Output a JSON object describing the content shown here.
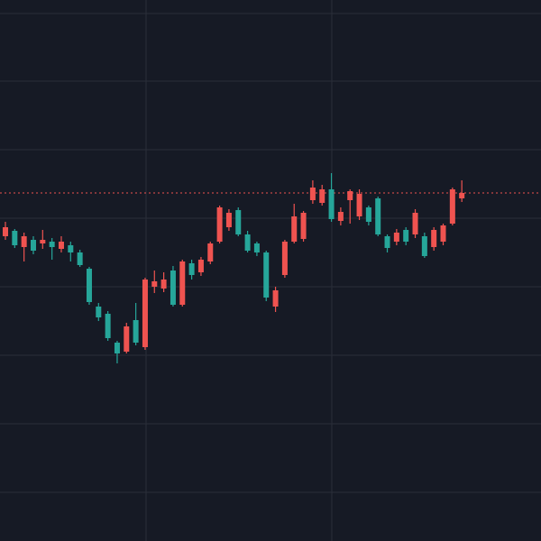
{
  "chart_data": {
    "type": "candlestick",
    "open": [
      338,
      344,
      326,
      334,
      330,
      332,
      324,
      328,
      320,
      302,
      260,
      252,
      220,
      210,
      245,
      215,
      282,
      280,
      300,
      262,
      308,
      298,
      310,
      332,
      348,
      367,
      340,
      330,
      320,
      260,
      295,
      332,
      335,
      378,
      375,
      390,
      355,
      378,
      360,
      370,
      380,
      338,
      332,
      345,
      340,
      338,
      326,
      332,
      352,
      380
    ],
    "high": [
      354,
      346,
      342,
      338,
      345,
      336,
      338,
      332,
      323,
      304,
      264,
      255,
      222,
      242,
      264,
      292,
      300,
      298,
      305,
      312,
      312,
      315,
      332,
      372,
      368,
      370,
      344,
      332,
      322,
      282,
      334,
      374,
      366,
      400,
      395,
      408,
      370,
      390,
      390,
      372,
      382,
      340,
      346,
      348,
      368,
      342,
      348,
      352,
      392,
      400
    ],
    "low": [
      334,
      325,
      310,
      318,
      324,
      312,
      320,
      310,
      304,
      262,
      244,
      222,
      197,
      208,
      217,
      212,
      275,
      276,
      260,
      260,
      290,
      294,
      307,
      330,
      344,
      338,
      320,
      316,
      266,
      254,
      292,
      330,
      332,
      374,
      372,
      354,
      350,
      352,
      356,
      350,
      338,
      320,
      328,
      328,
      336,
      314,
      322,
      328,
      350,
      376
    ],
    "close": [
      348,
      328,
      338,
      322,
      334,
      326,
      332,
      320,
      306,
      265,
      248,
      225,
      208,
      238,
      220,
      290,
      288,
      290,
      262,
      310,
      295,
      312,
      330,
      370,
      364,
      340,
      322,
      320,
      270,
      278,
      332,
      360,
      364,
      392,
      390,
      357,
      365,
      388,
      385,
      354,
      340,
      325,
      342,
      332,
      364,
      316,
      345,
      350,
      390,
      386
    ],
    "up_color": "#ef5350",
    "down_color": "#26a69a",
    "ylim": [
      0,
      600
    ],
    "yticks": [
      54,
      130,
      206,
      282,
      358,
      434,
      510,
      585
    ],
    "grid": true,
    "last_price_line": true
  }
}
